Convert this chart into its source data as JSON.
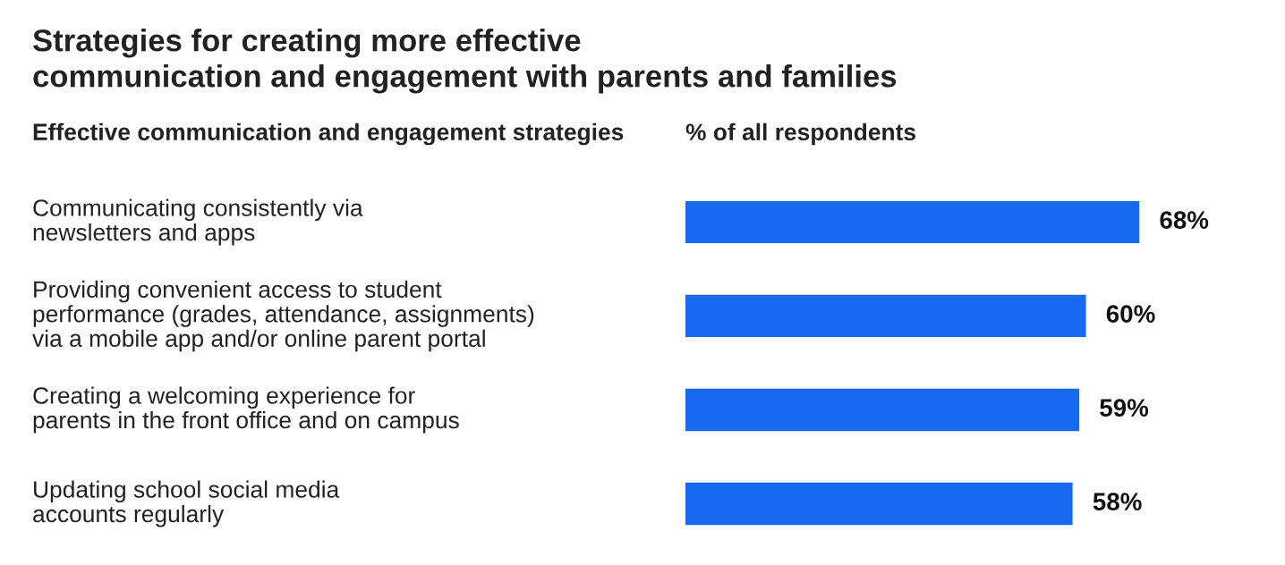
{
  "chart_data": {
    "type": "bar",
    "orientation": "horizontal",
    "title": "Strategies for creating more effective\ncommunication and engagement with parents and families",
    "ylabel": "Effective communication and engagement strategies",
    "xlabel": "% of all respondents",
    "categories": [
      "Communicating consistently via\nnewsletters and apps",
      "Providing convenient access to student\nperformance (grades, attendance, assignments)\nvia a mobile app and/or online parent portal",
      "Creating a welcoming experience for\nparents in the front office and on campus",
      "Updating school social media\naccounts regularly"
    ],
    "values": [
      68,
      60,
      59,
      58
    ],
    "value_labels": [
      "68%",
      "60%",
      "59%",
      "58%"
    ],
    "color": "#1769f0"
  }
}
